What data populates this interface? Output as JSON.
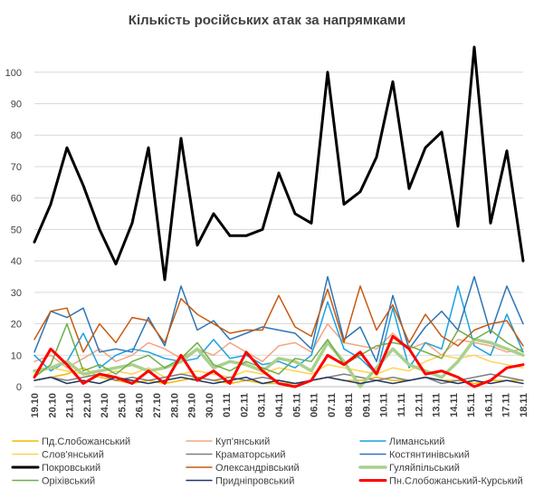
{
  "chart_data": {
    "type": "line",
    "title": "Кількість російських атак за напрямками",
    "xlabel": "",
    "ylabel": "",
    "ylim": [
      0,
      108
    ],
    "yticks": [
      0,
      10,
      20,
      30,
      40,
      50,
      60,
      70,
      80,
      90,
      100
    ],
    "grid": true,
    "legend_position": "bottom",
    "categories": [
      "19.10",
      "20.10",
      "21.10",
      "22.10",
      "23.10",
      "24.10",
      "25.10",
      "26.10",
      "27.10",
      "28.10",
      "29.10",
      "30.10",
      "31.10",
      "01.11",
      "02.11",
      "03.11",
      "04.11",
      "05.11",
      "06.11",
      "07.11",
      "08.11",
      "09.11",
      "10.11",
      "11.11",
      "12.11",
      "13.11",
      "14.11",
      "15.11",
      "16.11",
      "17.11",
      "18.11"
    ],
    "x_tick_labels": [
      "19.10",
      "20.10",
      "21.10",
      "22.10",
      "24.10",
      "25.10",
      "26.10",
      "27.10",
      "28.10",
      "29.10",
      "30.10",
      "01.11",
      "02.11",
      "03.11",
      "04.11",
      "05.11",
      "06.11",
      "07.11",
      "08.11",
      "09.11",
      "10.11",
      "11.11",
      "12.11",
      "13.11",
      "14.11",
      "15.11",
      "16.11",
      "17.11",
      "18.11"
    ],
    "series": [
      {
        "name": "Пд.Слобожанський",
        "color": "#f5b800",
        "width": 1.5,
        "values": [
          2,
          3,
          4,
          6,
          3,
          2,
          1,
          2,
          1,
          2,
          3,
          2,
          1,
          2,
          1,
          1,
          1,
          2,
          3,
          2,
          2,
          3,
          2,
          2,
          3,
          2,
          2,
          1,
          2,
          2,
          2
        ]
      },
      {
        "name": "Куп'янський",
        "color": "#f4a582",
        "width": 1.5,
        "values": [
          8,
          10,
          6,
          9,
          12,
          8,
          10,
          14,
          12,
          9,
          12,
          10,
          14,
          11,
          8,
          13,
          14,
          11,
          20,
          14,
          13,
          12,
          17,
          12,
          14,
          10,
          15,
          14,
          13,
          11,
          12
        ]
      },
      {
        "name": "Лиманський",
        "color": "#1ba1e2",
        "width": 1.5,
        "values": [
          10,
          5,
          8,
          17,
          6,
          10,
          12,
          11,
          9,
          8,
          9,
          15,
          9,
          10,
          7,
          8,
          6,
          10,
          27,
          12,
          9,
          4,
          25,
          6,
          14,
          12,
          32,
          13,
          10,
          23,
          11
        ]
      },
      {
        "name": "Слов'янський",
        "color": "#ffd34e",
        "width": 1.5,
        "values": [
          4,
          6,
          5,
          4,
          3,
          5,
          4,
          6,
          3,
          4,
          5,
          4,
          3,
          5,
          4,
          6,
          5,
          4,
          7,
          6,
          5,
          4,
          6,
          5,
          8,
          10,
          9,
          10,
          8,
          7,
          6
        ]
      },
      {
        "name": "Краматорський",
        "color": "#7f7f7f",
        "width": 1.5,
        "values": [
          2,
          3,
          2,
          3,
          4,
          2,
          3,
          2,
          3,
          4,
          3,
          2,
          3,
          2,
          3,
          2,
          1,
          2,
          3,
          4,
          3,
          2,
          3,
          2,
          3,
          1,
          2,
          3,
          4,
          3,
          2
        ]
      },
      {
        "name": "Костянтинівський",
        "color": "#2e75b6",
        "width": 1.5,
        "values": [
          11,
          24,
          22,
          25,
          11,
          12,
          11,
          22,
          13,
          32,
          18,
          21,
          15,
          17,
          19,
          18,
          17,
          12,
          35,
          15,
          19,
          8,
          29,
          12,
          19,
          24,
          18,
          35,
          17,
          32,
          20
        ]
      },
      {
        "name": "Покровський",
        "color": "#000000",
        "width": 3,
        "values": [
          46,
          58,
          76,
          64,
          50,
          39,
          52,
          76,
          34,
          79,
          45,
          55,
          48,
          48,
          50,
          68,
          55,
          52,
          100,
          58,
          62,
          73,
          97,
          63,
          76,
          81,
          51,
          108,
          52,
          75,
          40
        ]
      },
      {
        "name": "Олександрівський",
        "color": "#c55a11",
        "width": 1.5,
        "values": [
          15,
          24,
          25,
          11,
          20,
          14,
          22,
          21,
          14,
          28,
          23,
          20,
          17,
          18,
          18,
          29,
          19,
          16,
          31,
          14,
          32,
          18,
          26,
          14,
          23,
          16,
          13,
          18,
          20,
          21,
          13
        ]
      },
      {
        "name": "Гуляйпільський",
        "color": "#a9d18e",
        "width": 3.5,
        "values": [
          5,
          6,
          8,
          4,
          5,
          6,
          7,
          5,
          6,
          8,
          12,
          6,
          8,
          7,
          5,
          9,
          8,
          5,
          14,
          8,
          0,
          6,
          12,
          7,
          5,
          3,
          8,
          15,
          14,
          12,
          10
        ]
      },
      {
        "name": "Оріхівський",
        "color": "#70ad47",
        "width": 1.5,
        "values": [
          3,
          7,
          20,
          5,
          7,
          4,
          8,
          10,
          6,
          9,
          14,
          7,
          5,
          8,
          6,
          4,
          9,
          8,
          15,
          7,
          10,
          13,
          14,
          13,
          11,
          9,
          18,
          15,
          18,
          14,
          11
        ]
      },
      {
        "name": "Придніпровський",
        "color": "#1f3864",
        "width": 1.5,
        "values": [
          2,
          3,
          1,
          2,
          1,
          3,
          2,
          1,
          2,
          3,
          2,
          1,
          2,
          3,
          1,
          2,
          1,
          2,
          3,
          2,
          1,
          2,
          1,
          2,
          3,
          2,
          1,
          2,
          1,
          2,
          1
        ]
      },
      {
        "name": "Пн.Слобожанський-Курський",
        "color": "#ff0000",
        "width": 3,
        "values": [
          3,
          12,
          7,
          1,
          4,
          3,
          1,
          5,
          1,
          10,
          2,
          5,
          1,
          11,
          5,
          1,
          0,
          2,
          10,
          7,
          11,
          4,
          16,
          12,
          4,
          5,
          3,
          0,
          2,
          6,
          7
        ]
      }
    ]
  }
}
